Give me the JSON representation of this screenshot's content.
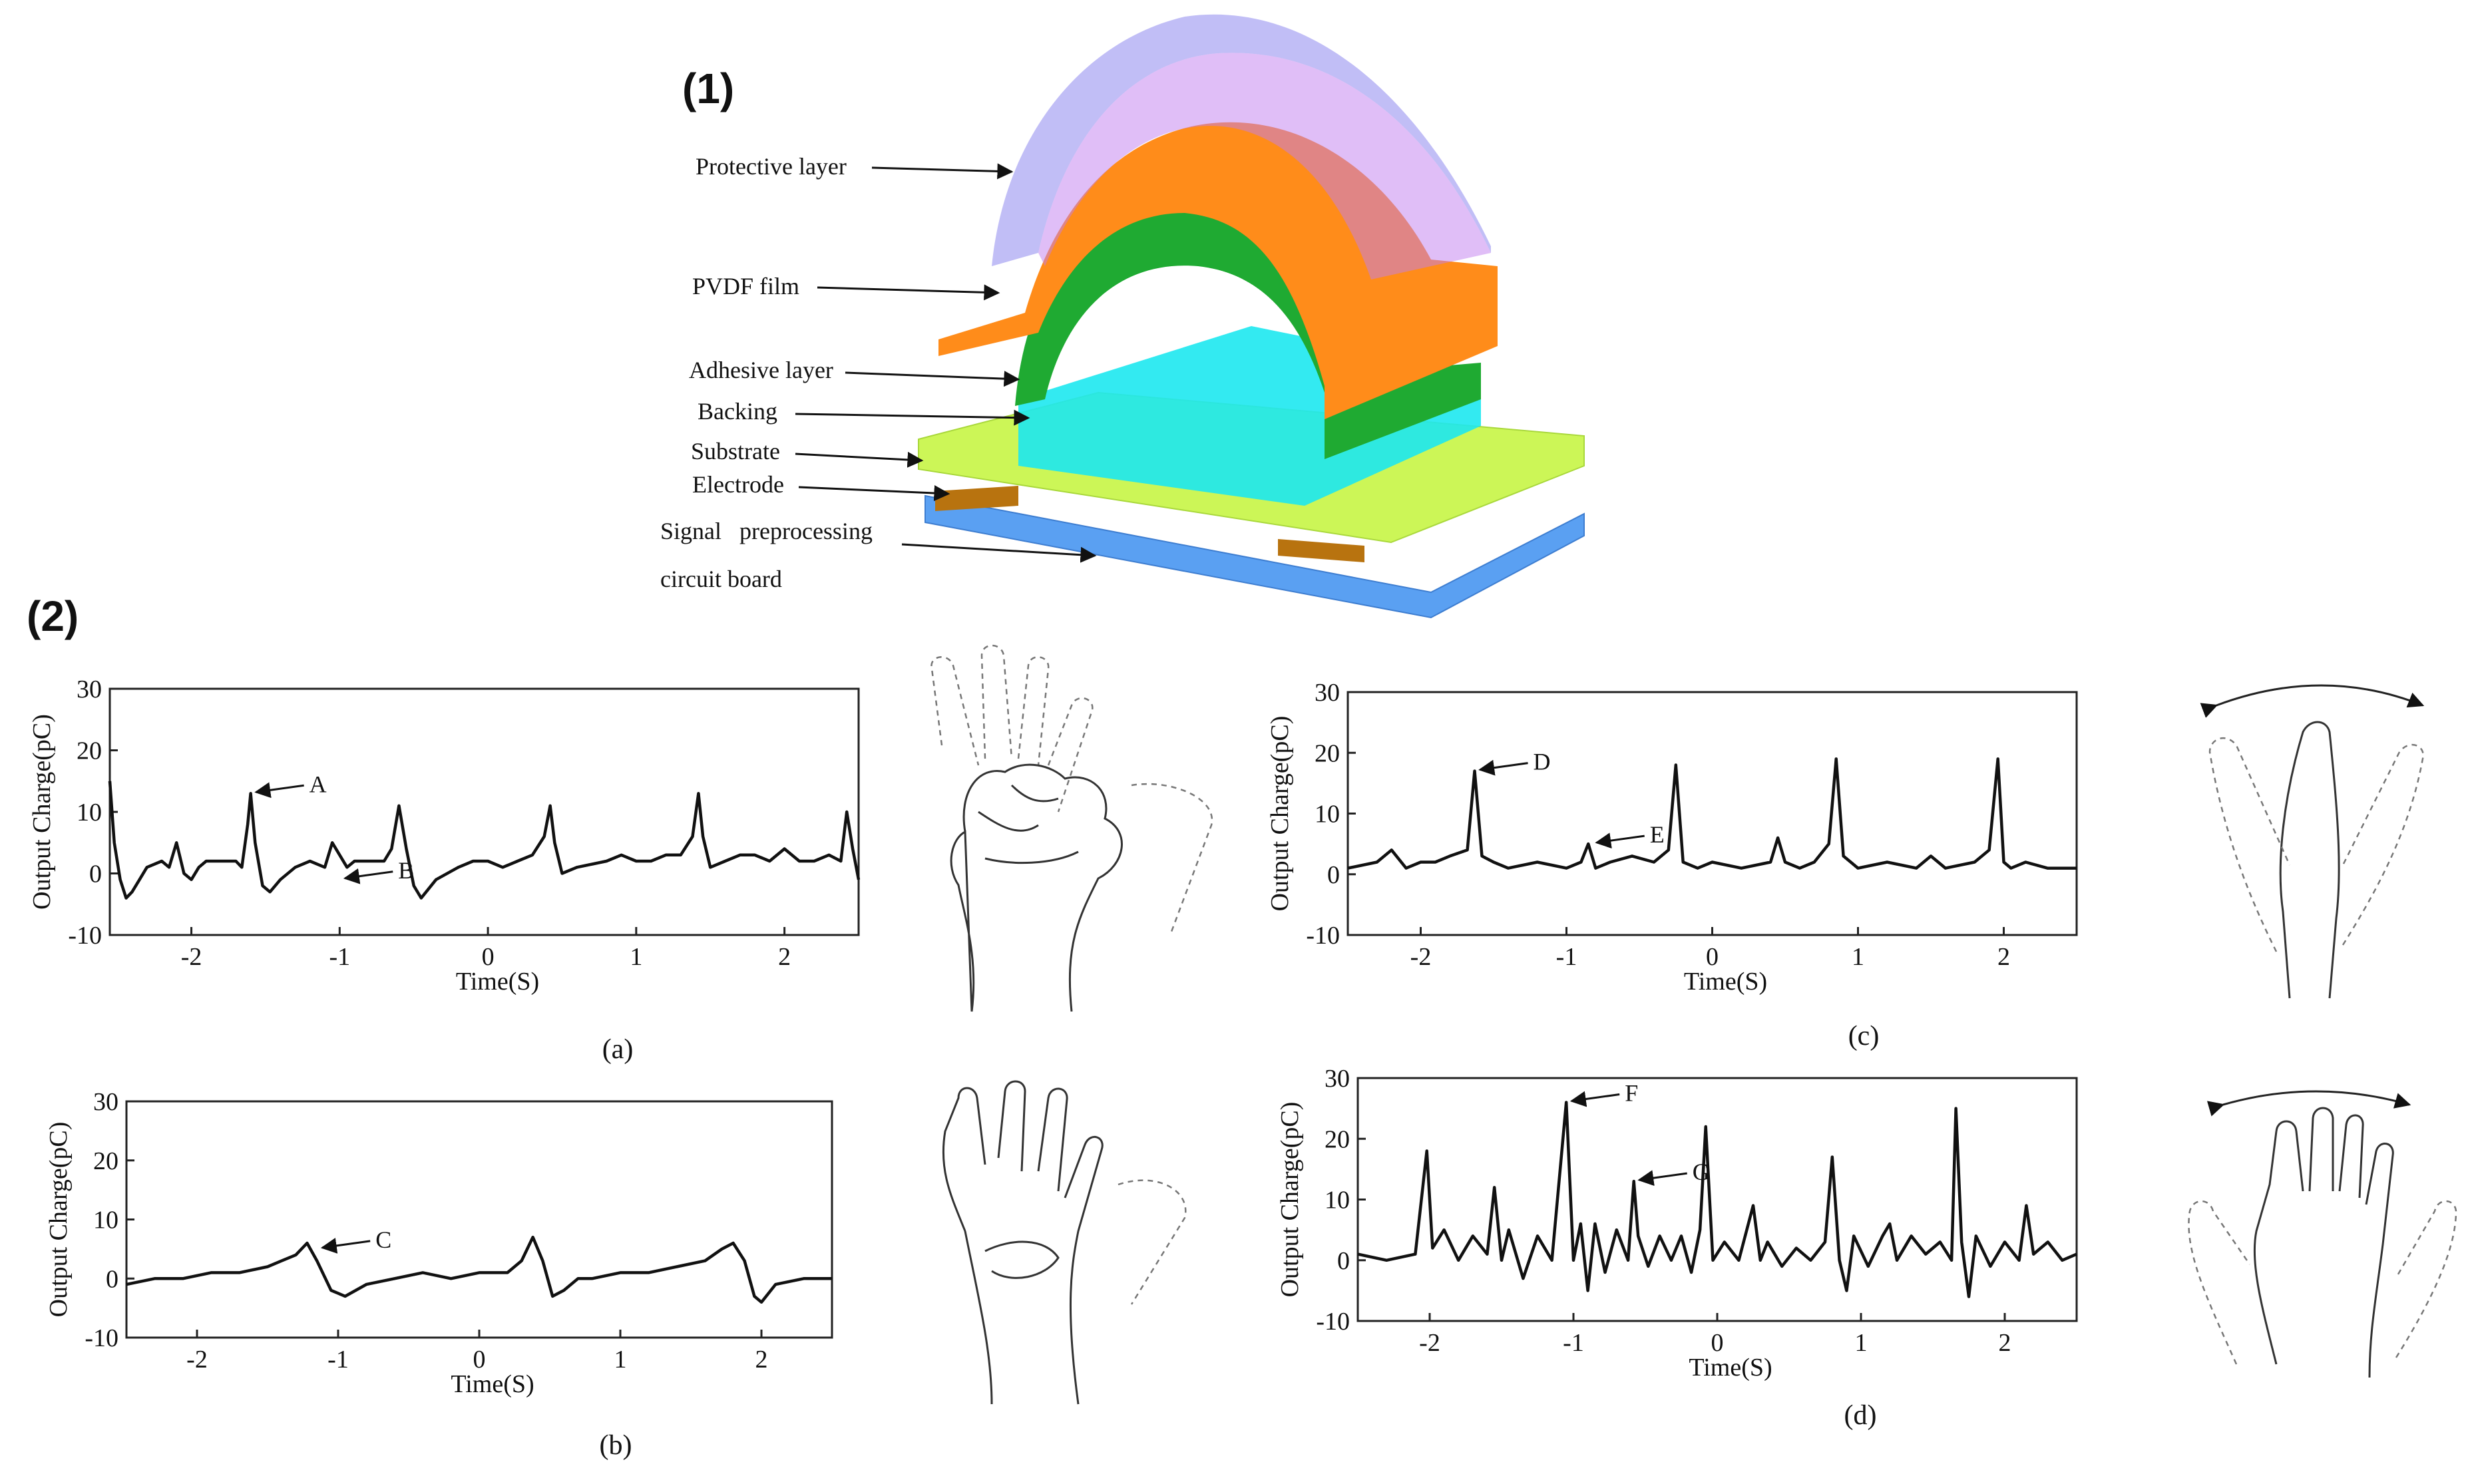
{
  "figure": {
    "part1_label": "(1)",
    "part2_label": "(2)"
  },
  "exploded_view": {
    "layer_labels": [
      "Protective layer",
      "PVDF film",
      "Adhesive layer",
      "Backing",
      "Substrate",
      "Electrode",
      "Signal   preprocessing",
      "circuit board"
    ],
    "colors": {
      "protective": "#a9a6f2",
      "pvdf": "#ff8c1a",
      "adhesive": "#1faa32",
      "backing": "#1de8ef",
      "substrate": "#c4f53a",
      "electrode": "#b8730f",
      "board": "#5aa0f2"
    }
  },
  "chart_data": [
    {
      "id": "a",
      "type": "line",
      "caption": "(a)",
      "xlabel": "Time(S)",
      "ylabel": "Output Charge(pC)",
      "xlim": [
        -2.55,
        2.5
      ],
      "ylim": [
        -10,
        30
      ],
      "xticks": [
        -2,
        -1,
        0,
        1,
        2
      ],
      "yticks": [
        -10,
        0,
        10,
        20,
        30
      ],
      "annotations": [
        {
          "text": "A",
          "x": -1.6,
          "y": 13
        },
        {
          "text": "B",
          "x": -1.0,
          "y": -1
        }
      ],
      "x": [
        -2.55,
        -2.52,
        -2.48,
        -2.44,
        -2.4,
        -2.35,
        -2.3,
        -2.2,
        -2.15,
        -2.1,
        -2.05,
        -2.0,
        -1.95,
        -1.9,
        -1.8,
        -1.7,
        -1.66,
        -1.62,
        -1.6,
        -1.57,
        -1.52,
        -1.47,
        -1.4,
        -1.3,
        -1.2,
        -1.1,
        -1.05,
        -1.0,
        -0.95,
        -0.9,
        -0.8,
        -0.7,
        -0.65,
        -0.6,
        -0.55,
        -0.5,
        -0.45,
        -0.35,
        -0.2,
        -0.1,
        0.0,
        0.1,
        0.2,
        0.3,
        0.38,
        0.42,
        0.45,
        0.5,
        0.6,
        0.8,
        0.9,
        1.0,
        1.1,
        1.2,
        1.3,
        1.38,
        1.42,
        1.45,
        1.5,
        1.6,
        1.7,
        1.8,
        1.9,
        2.0,
        2.1,
        2.2,
        2.3,
        2.38,
        2.42,
        2.46,
        2.5
      ],
      "y": [
        15,
        5,
        -1,
        -4,
        -3,
        -1,
        1,
        2,
        1,
        5,
        0,
        -1,
        1,
        2,
        2,
        2,
        1,
        8,
        13,
        5,
        -2,
        -3,
        -1,
        1,
        2,
        1,
        5,
        3,
        1,
        2,
        2,
        2,
        4,
        11,
        4,
        -2,
        -4,
        -1,
        1,
        2,
        2,
        1,
        2,
        3,
        6,
        11,
        5,
        0,
        1,
        2,
        3,
        2,
        2,
        3,
        3,
        6,
        13,
        6,
        1,
        2,
        3,
        3,
        2,
        4,
        2,
        2,
        3,
        2,
        10,
        4,
        -1
      ]
    },
    {
      "id": "b",
      "type": "line",
      "caption": "(b)",
      "xlabel": "Time(S)",
      "ylabel": "Output Charge(pC)",
      "xlim": [
        -2.5,
        2.5
      ],
      "ylim": [
        -10,
        30
      ],
      "xticks": [
        -2,
        -1,
        0,
        1,
        2
      ],
      "yticks": [
        -10,
        0,
        10,
        20,
        30
      ],
      "annotations": [
        {
          "text": "C",
          "x": -1.15,
          "y": 5
        }
      ],
      "x": [
        -2.5,
        -2.3,
        -2.1,
        -1.9,
        -1.7,
        -1.5,
        -1.4,
        -1.3,
        -1.22,
        -1.15,
        -1.05,
        -0.95,
        -0.8,
        -0.6,
        -0.4,
        -0.2,
        0.0,
        0.2,
        0.3,
        0.38,
        0.45,
        0.52,
        0.6,
        0.7,
        0.8,
        1.0,
        1.2,
        1.4,
        1.6,
        1.72,
        1.8,
        1.88,
        1.95,
        2.0,
        2.1,
        2.3,
        2.5
      ],
      "y": [
        -1,
        0,
        0,
        1,
        1,
        2,
        3,
        4,
        6,
        3,
        -2,
        -3,
        -1,
        0,
        1,
        0,
        1,
        1,
        3,
        7,
        3,
        -3,
        -2,
        0,
        0,
        1,
        1,
        2,
        3,
        5,
        6,
        3,
        -3,
        -4,
        -1,
        0,
        0
      ]
    },
    {
      "id": "c",
      "type": "line",
      "caption": "(c)",
      "xlabel": "Time(S)",
      "ylabel": "Output Charge(pC)",
      "xlim": [
        -2.5,
        2.5
      ],
      "ylim": [
        -10,
        30
      ],
      "xticks": [
        -2,
        -1,
        0,
        1,
        2
      ],
      "yticks": [
        -10,
        0,
        10,
        20,
        30
      ],
      "annotations": [
        {
          "text": "D",
          "x": -1.63,
          "y": 17
        },
        {
          "text": "E",
          "x": -0.83,
          "y": 5
        }
      ],
      "x": [
        -2.5,
        -2.3,
        -2.2,
        -2.1,
        -2.0,
        -1.9,
        -1.8,
        -1.68,
        -1.63,
        -1.58,
        -1.5,
        -1.4,
        -1.2,
        -1.0,
        -0.9,
        -0.85,
        -0.8,
        -0.7,
        -0.55,
        -0.4,
        -0.3,
        -0.25,
        -0.2,
        -0.1,
        0.0,
        0.2,
        0.4,
        0.45,
        0.5,
        0.6,
        0.7,
        0.8,
        0.85,
        0.9,
        0.95,
        1.0,
        1.2,
        1.4,
        1.5,
        1.6,
        1.8,
        1.9,
        1.96,
        2.0,
        2.05,
        2.15,
        2.3,
        2.5
      ],
      "y": [
        1,
        2,
        4,
        1,
        2,
        2,
        3,
        4,
        17,
        3,
        2,
        1,
        2,
        1,
        2,
        5,
        1,
        2,
        3,
        2,
        4,
        18,
        2,
        1,
        2,
        1,
        2,
        6,
        2,
        1,
        2,
        5,
        19,
        3,
        2,
        1,
        2,
        1,
        3,
        1,
        2,
        4,
        19,
        2,
        1,
        2,
        1,
        1
      ]
    },
    {
      "id": "d",
      "type": "line",
      "caption": "(d)",
      "xlabel": "Time(S)",
      "ylabel": "Output Charge(pC)",
      "xlim": [
        -2.5,
        2.5
      ],
      "ylim": [
        -10,
        30
      ],
      "xticks": [
        -2,
        -1,
        0,
        1,
        2
      ],
      "yticks": [
        -10,
        0,
        10,
        20,
        30
      ],
      "annotations": [
        {
          "text": "F",
          "x": -1.05,
          "y": 26
        },
        {
          "text": "G",
          "x": -0.58,
          "y": 13
        }
      ],
      "x": [
        -2.5,
        -2.3,
        -2.1,
        -2.02,
        -1.98,
        -1.9,
        -1.8,
        -1.7,
        -1.6,
        -1.55,
        -1.5,
        -1.45,
        -1.35,
        -1.25,
        -1.15,
        -1.05,
        -1.0,
        -0.95,
        -0.9,
        -0.85,
        -0.78,
        -0.7,
        -0.62,
        -0.58,
        -0.55,
        -0.48,
        -0.4,
        -0.32,
        -0.25,
        -0.18,
        -0.12,
        -0.08,
        -0.03,
        0.05,
        0.15,
        0.25,
        0.3,
        0.35,
        0.45,
        0.55,
        0.65,
        0.75,
        0.8,
        0.85,
        0.9,
        0.95,
        1.05,
        1.15,
        1.2,
        1.25,
        1.35,
        1.45,
        1.55,
        1.63,
        1.66,
        1.7,
        1.75,
        1.8,
        1.9,
        2.0,
        2.1,
        2.15,
        2.2,
        2.3,
        2.4,
        2.5
      ],
      "y": [
        1,
        0,
        1,
        18,
        2,
        5,
        0,
        4,
        1,
        12,
        0,
        5,
        -3,
        4,
        0,
        26,
        0,
        6,
        -5,
        6,
        -2,
        5,
        0,
        13,
        4,
        -1,
        4,
        0,
        4,
        -2,
        5,
        22,
        0,
        3,
        0,
        9,
        0,
        3,
        -1,
        2,
        0,
        3,
        17,
        0,
        -5,
        4,
        -1,
        4,
        6,
        0,
        4,
        1,
        3,
        0,
        25,
        3,
        -6,
        4,
        -1,
        3,
        0,
        9,
        1,
        3,
        0,
        1
      ]
    }
  ]
}
